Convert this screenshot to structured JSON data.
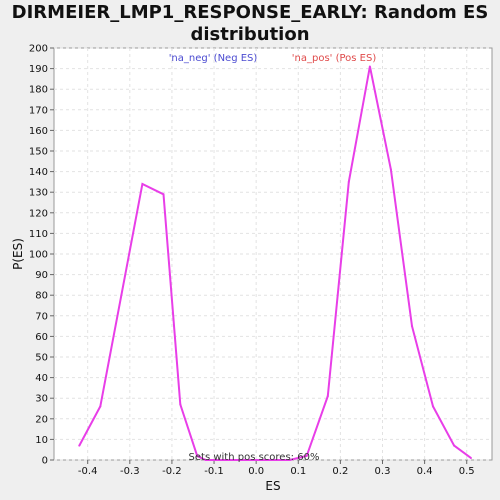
{
  "chart_data": {
    "type": "line",
    "title_line1": "DIRMEIER_LMP1_RESPONSE_EARLY: Random ES",
    "title_line2": "distribution",
    "xlabel": "ES",
    "ylabel": "P(ES)",
    "xlim": [
      -0.48,
      0.56
    ],
    "ylim": [
      0,
      200
    ],
    "x_ticks": [
      -0.4,
      -0.3,
      -0.2,
      -0.1,
      0.0,
      0.1,
      0.2,
      0.3,
      0.4,
      0.5
    ],
    "x_tick_labels": [
      "-0.4",
      "-0.3",
      "-0.2",
      "-0.1",
      "0.0",
      "0.1",
      "0.2",
      "0.3",
      "0.4",
      "0.5"
    ],
    "y_ticks": [
      0,
      10,
      20,
      30,
      40,
      50,
      60,
      70,
      80,
      90,
      100,
      110,
      120,
      130,
      140,
      150,
      160,
      170,
      180,
      190,
      200
    ],
    "grid": true,
    "series_color": "#e83ee8",
    "neg_label": "'na_neg' (Neg ES)",
    "pos_label": "'na_pos' (Pos ES)",
    "neg_color": "#4b4bd1",
    "pos_color": "#e04a4a",
    "annotation": "Sets with pos scores: 60%",
    "x": [
      -0.42,
      -0.37,
      -0.27,
      -0.22,
      -0.18,
      -0.14,
      -0.12,
      0.08,
      0.12,
      0.17,
      0.22,
      0.27,
      0.32,
      0.37,
      0.42,
      0.47,
      0.51
    ],
    "y": [
      7,
      26,
      134,
      129,
      27,
      2,
      0,
      0,
      2,
      31,
      135,
      191,
      141,
      65,
      26,
      7,
      1
    ]
  }
}
